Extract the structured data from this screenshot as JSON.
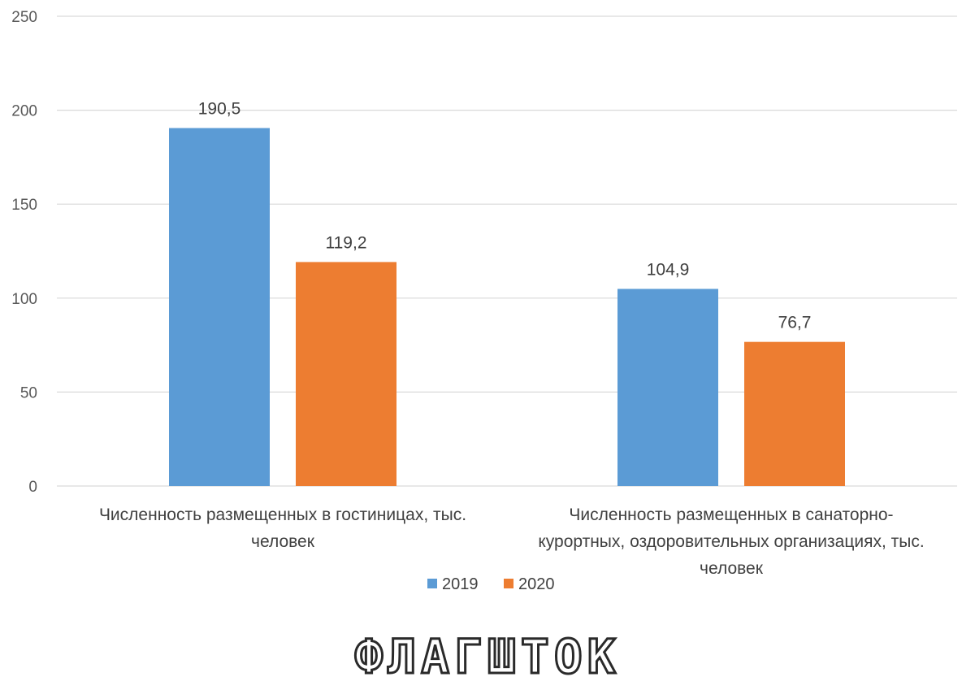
{
  "chart_data": {
    "type": "bar",
    "categories": [
      [
        "Численность размещенных в гостиницах, тыс.",
        "человек"
      ],
      [
        "Численность размещенных в санаторно-",
        "курортных, оздоровительных организациях, тыс.",
        "человек"
      ]
    ],
    "series": [
      {
        "name": "2019",
        "values": [
          190.5,
          104.9
        ],
        "labels": [
          "190,5",
          "104,9"
        ],
        "color": "#5b9bd5"
      },
      {
        "name": "2020",
        "values": [
          119.2,
          76.7
        ],
        "labels": [
          "119,2",
          "76,7"
        ],
        "color": "#ed7d31"
      }
    ],
    "yticks": [
      "0",
      "50",
      "100",
      "150",
      "200",
      "250"
    ],
    "ylim": [
      0,
      250
    ],
    "grid": true,
    "legend_position": "bottom"
  },
  "logo": {
    "text": "ФЛАГШТОК"
  }
}
